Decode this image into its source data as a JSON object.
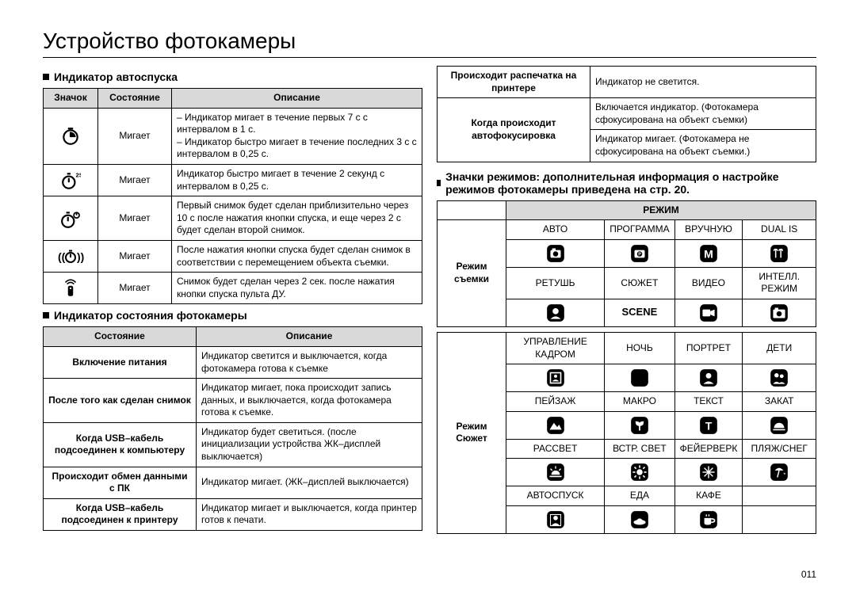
{
  "title": "Устройство фотокамеры",
  "pageNumber": "011",
  "sections": {
    "selftimer": "Индикатор автоспуска",
    "status": "Индикатор состояния фотокамеры",
    "modeicons": "Значки режимов: дополнительная информация о настройке режимов фотокамеры приведена на стр. 20."
  },
  "selftimer": {
    "headers": [
      "Значок",
      "Состояние",
      "Описание"
    ],
    "rows": [
      {
        "state": "Мигает",
        "desc": "– Индикатор мигает в течение первых 7 с с интервалом в 1 с.\n– Индикатор быстро мигает в течение последних 3 с с интервалом в 0,25 с."
      },
      {
        "state": "Мигает",
        "desc": "Индикатор быстро мигает в течение 2 секунд с интервалом в 0,25 с."
      },
      {
        "state": "Мигает",
        "desc": "Первый снимок будет сделан приблизительно через 10 с после нажатия кнопки спуска, и еще через 2 с будет сделан второй снимок."
      },
      {
        "state": "Мигает",
        "desc": "После нажатия кнопки спуска будет сделан снимок в соответствии с перемещением объекта съемки."
      },
      {
        "state": "Мигает",
        "desc": "Снимок будет сделан через 2 сек. после нажатия кнопки спуска пульта ДУ."
      }
    ]
  },
  "status": {
    "headers": [
      "Состояние",
      "Описание"
    ],
    "rows": [
      {
        "state": "Включение питания",
        "desc": "Индикатор светится и выключается, когда фотокамера готова к съемке"
      },
      {
        "state": "После того как сделан снимок",
        "desc": "Индикатор мигает, пока происходит запись данных, и выключается, когда фотокамера готова к съемке."
      },
      {
        "state": "Когда USB–кабель подсоединен к компьютеру",
        "desc": "Индикатор будет светиться. (после инициализации устройства ЖК–дисплей выключается)"
      },
      {
        "state": "Происходит обмен данными с ПК",
        "desc": "Индикатор мигает. (ЖК–дисплей выключается)"
      },
      {
        "state": "Когда USB–кабель подсоединен к принтеру",
        "desc": "Индикатор мигает и выключается, когда принтер готов к печати."
      }
    ]
  },
  "status2": {
    "rows": [
      {
        "state": "Происходит распечатка на принтере",
        "desc": "Индикатор не светится."
      },
      {
        "state": "Когда происходит автофокусировка",
        "desc": "Включается индикатор. (Фотокамера сфокусирована на объект съемки)"
      },
      {
        "desc": "Индикатор мигает. (Фотокамера не сфокусирована на объект съемки.)"
      }
    ]
  },
  "modes": {
    "header": "РЕЖИМ",
    "groupShoot": "Режим съемки",
    "groupScene": "Режим Сюжет",
    "sceneWord": "SCENE",
    "shoot": [
      "АВТО",
      "ПРОГРАММА",
      "ВРУЧНУЮ",
      "DUAL IS",
      "РЕТУШЬ",
      "СЮЖЕТ",
      "ВИДЕО",
      "ИНТЕЛЛ. РЕЖИМ"
    ],
    "scene": [
      "УПРАВЛЕНИЕ КАДРОМ",
      "НОЧЬ",
      "ПОРТРЕТ",
      "ДЕТИ",
      "ПЕЙЗАЖ",
      "МАКРО",
      "ТЕКСТ",
      "ЗАКАТ",
      "РАССВЕТ",
      "ВСТР. СВЕТ",
      "ФЕЙЕРВЕРК",
      "ПЛЯЖ/СНЕГ",
      "АВТОСПУСК",
      "ЕДА",
      "КАФЕ"
    ]
  }
}
